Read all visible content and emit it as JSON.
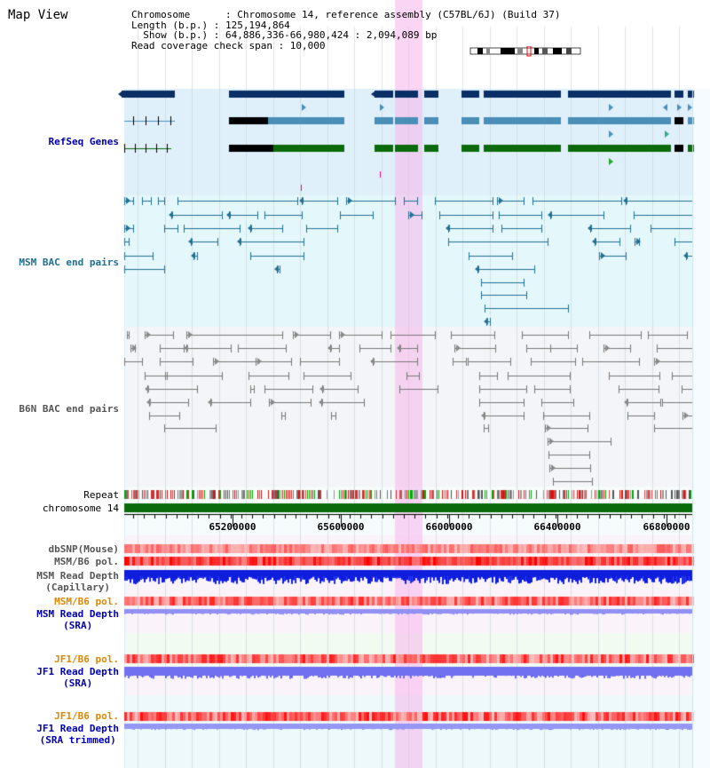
{
  "page_title": "Map View",
  "header": {
    "chromosome": "Chromosome      : Chromosome 14, reference assembly (C57BL/6J) (Build 37)",
    "length": "Length (b.p.) : 125,194,864",
    "show": "  Show (b.p.) : 64,886,336-66,980,424 : 2,094,089 bp",
    "coverage": "Read coverage check span : 10,000"
  },
  "tracks": {
    "refseq": "RefSeq Genes",
    "msm_bac": "MSM BAC end pairs",
    "b6n_bac": "B6N BAC end pairs",
    "repeat": "Repeat",
    "chromosome": "chromosome 14",
    "dbsnp": "dbSNP(Mouse)",
    "msm_b6_pol": "MSM/B6 pol.",
    "msm_read_depth_cap_1": "MSM Read Depth",
    "msm_read_depth_cap_2": "(Capillary)",
    "msm_b6_pol_2": "MSM/B6 pol.",
    "msm_read_depth_sra_1": "MSM Read Depth",
    "msm_read_depth_sra_2": "(SRA)",
    "jf1_b6_pol": "JF1/B6 pol.",
    "jf1_read_depth_sra_1": "JF1 Read Depth",
    "jf1_read_depth_sra_2": "(SRA)",
    "jf1_b6_pol_2": "JF1/B6 pol.",
    "jf1_read_depth_trim_1": "JF1 Read Depth",
    "jf1_read_depth_trim_2": "(SRA trimmed)"
  },
  "axis": {
    "ticks": [
      "65200000",
      "65600000",
      "66000000",
      "66400000",
      "66800000"
    ]
  },
  "colors": {
    "refseq_bg": "#dff0fa",
    "msm_bg": "#e4f8fb",
    "gray_bg": "#f3f5f8",
    "highlight": "#f9d5f2",
    "gene_dark": "#0a2f66",
    "gene_mid": "#4a8fb8",
    "gene_green": "#0b6b0b",
    "msm_line": "#236f91",
    "b6n_line": "#777777",
    "chromosome_bar": "#0b6b0b",
    "label_blue": "#0000b0",
    "label_orange": "#dd8800",
    "label_gray": "#555555",
    "label_teal": "#1f6f8f",
    "depth_blue": "#0e1edc",
    "depth_lavender": "#8c8cf5"
  }
}
